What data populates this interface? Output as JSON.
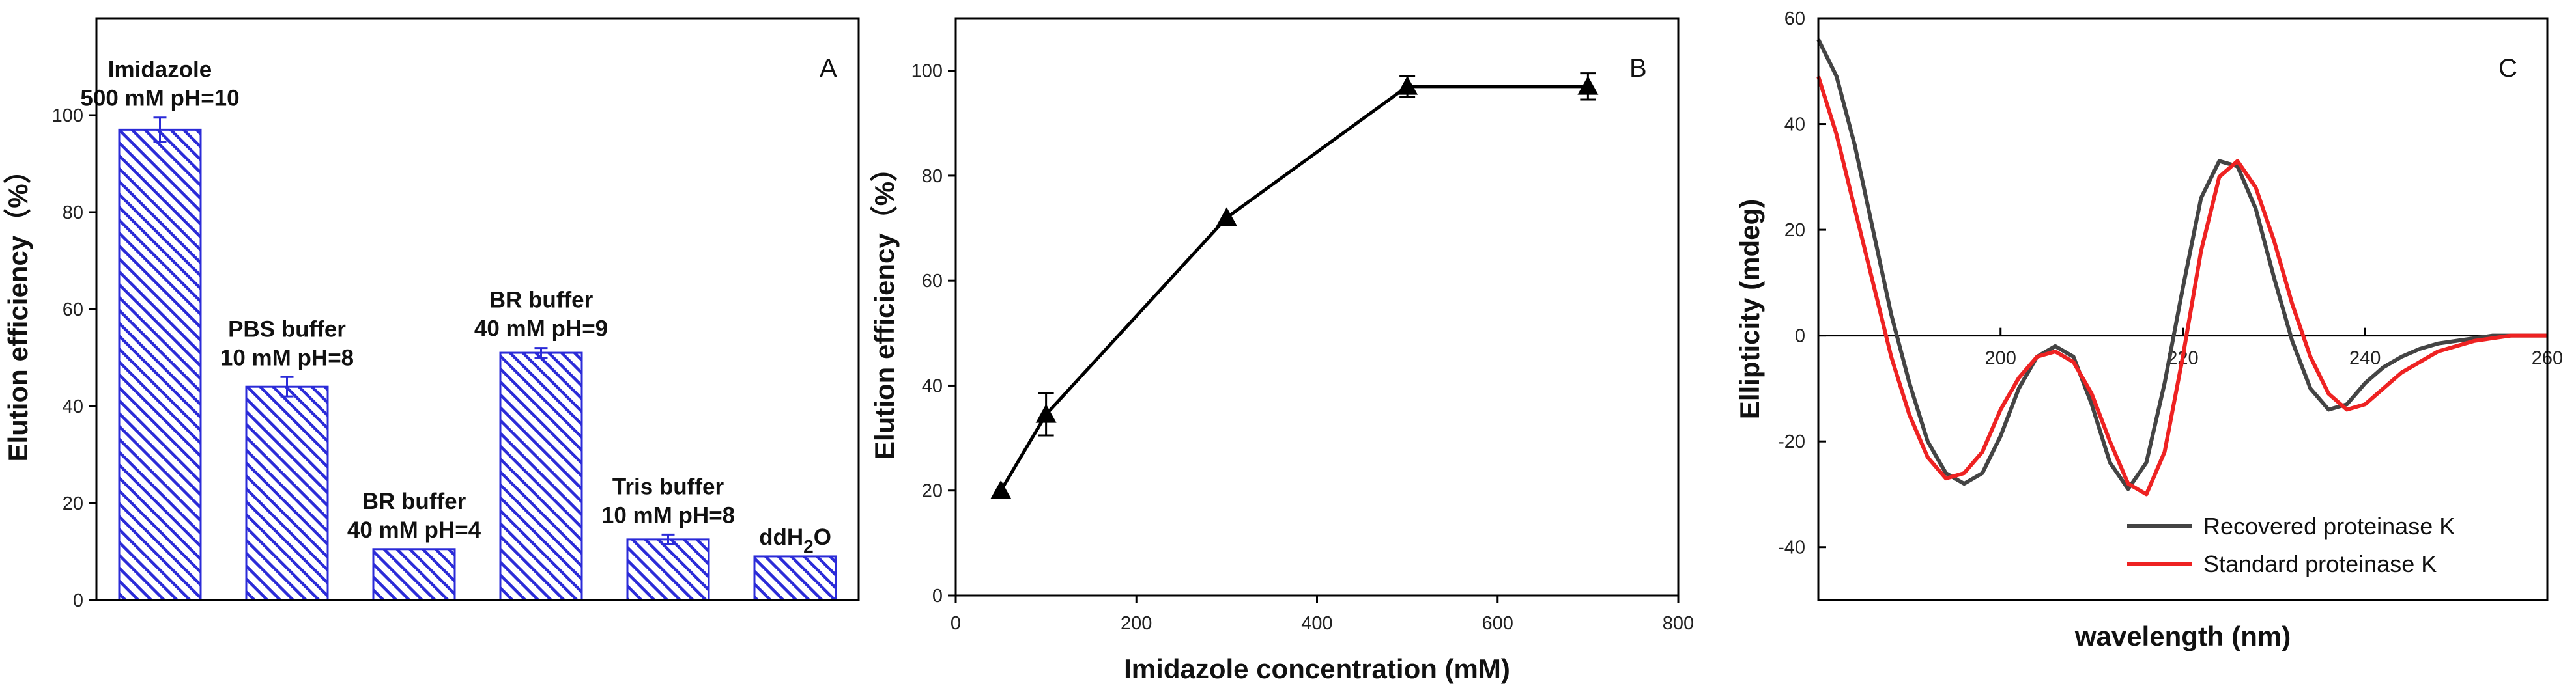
{
  "chart_data": [
    {
      "panel": "A",
      "type": "bar",
      "ylabel": "Elution efficiency（%）",
      "xlabel": "",
      "ylim": [
        0,
        120
      ],
      "yticks": [
        0,
        20,
        40,
        60,
        80,
        100
      ],
      "bar_color": "#2b2bd8",
      "categories": [
        {
          "line1": "Imidazole",
          "line2": "500  mM pH=10"
        },
        {
          "line1": "PBS buffer",
          "line2": "10 mM pH=8"
        },
        {
          "line1": "BR buffer",
          "line2": "40 mM pH=4"
        },
        {
          "line1": "BR buffer",
          "line2": "40 mM pH=9"
        },
        {
          "line1": "Tris buffer",
          "line2": "10 mM pH=8"
        },
        {
          "line1": "ddH",
          "sub": "2",
          "tail": "O"
        }
      ],
      "values": [
        97,
        44,
        10.5,
        51,
        12.5,
        9
      ],
      "errors": [
        2.5,
        2,
        0,
        1,
        1,
        0
      ]
    },
    {
      "panel": "B",
      "type": "line",
      "xlabel": "Imidazole concentration (mM)",
      "ylabel": "Elution efficiency（%）",
      "xlim": [
        0,
        800
      ],
      "ylim": [
        0,
        110
      ],
      "xticks": [
        0,
        200,
        400,
        600,
        800
      ],
      "yticks": [
        0,
        20,
        40,
        60,
        80,
        100
      ],
      "x": [
        50,
        100,
        300,
        500,
        700
      ],
      "y": [
        20,
        34.5,
        72,
        97,
        97
      ],
      "errors": [
        0,
        4,
        0,
        2,
        2.5
      ]
    },
    {
      "panel": "C",
      "type": "line",
      "xlabel": "wavelength (nm)",
      "ylabel": "Ellipticity (mdeg)",
      "xlim": [
        180,
        260
      ],
      "ylim": [
        -50,
        60
      ],
      "xticks": [
        200,
        220,
        240,
        260
      ],
      "yticks": [
        -40,
        -20,
        0,
        20,
        40,
        60
      ],
      "legend_position": "bottom-right",
      "series": [
        {
          "name": "Recovered proteinase K",
          "color": "#444444",
          "x": [
            180,
            182,
            184,
            186,
            188,
            190,
            192,
            194,
            196,
            198,
            200,
            202,
            204,
            206,
            208,
            210,
            212,
            214,
            216,
            218,
            220,
            222,
            224,
            226,
            228,
            230,
            232,
            234,
            236,
            238,
            240,
            242,
            244,
            246,
            248,
            250,
            252,
            254,
            256,
            258,
            260
          ],
          "y": [
            56,
            49,
            36,
            20,
            4,
            -9,
            -20,
            -26,
            -28,
            -26,
            -19,
            -10,
            -4,
            -2,
            -4,
            -13,
            -24,
            -29,
            -24,
            -9,
            9,
            26,
            33,
            32,
            24,
            11,
            -1,
            -10,
            -14,
            -13,
            -9,
            -6,
            -4,
            -2.5,
            -1.5,
            -1,
            -0.5,
            0,
            0,
            0,
            0
          ]
        },
        {
          "name": "Standard proteinase K",
          "color": "#ee2222",
          "x": [
            180,
            182,
            184,
            186,
            188,
            190,
            192,
            194,
            196,
            198,
            200,
            202,
            204,
            206,
            208,
            210,
            212,
            214,
            216,
            218,
            220,
            222,
            224,
            226,
            228,
            230,
            232,
            234,
            236,
            238,
            240,
            242,
            244,
            246,
            248,
            250,
            252,
            254,
            256,
            258,
            260
          ],
          "y": [
            49,
            38,
            24,
            10,
            -4,
            -15,
            -23,
            -27,
            -26,
            -22,
            -14,
            -8,
            -4,
            -3,
            -5,
            -11,
            -20,
            -28,
            -30,
            -22,
            -4,
            16,
            30,
            33,
            28,
            18,
            6,
            -4,
            -11,
            -14,
            -13,
            -10,
            -7,
            -5,
            -3,
            -2,
            -1,
            -0.5,
            0,
            0,
            0
          ]
        }
      ]
    }
  ]
}
